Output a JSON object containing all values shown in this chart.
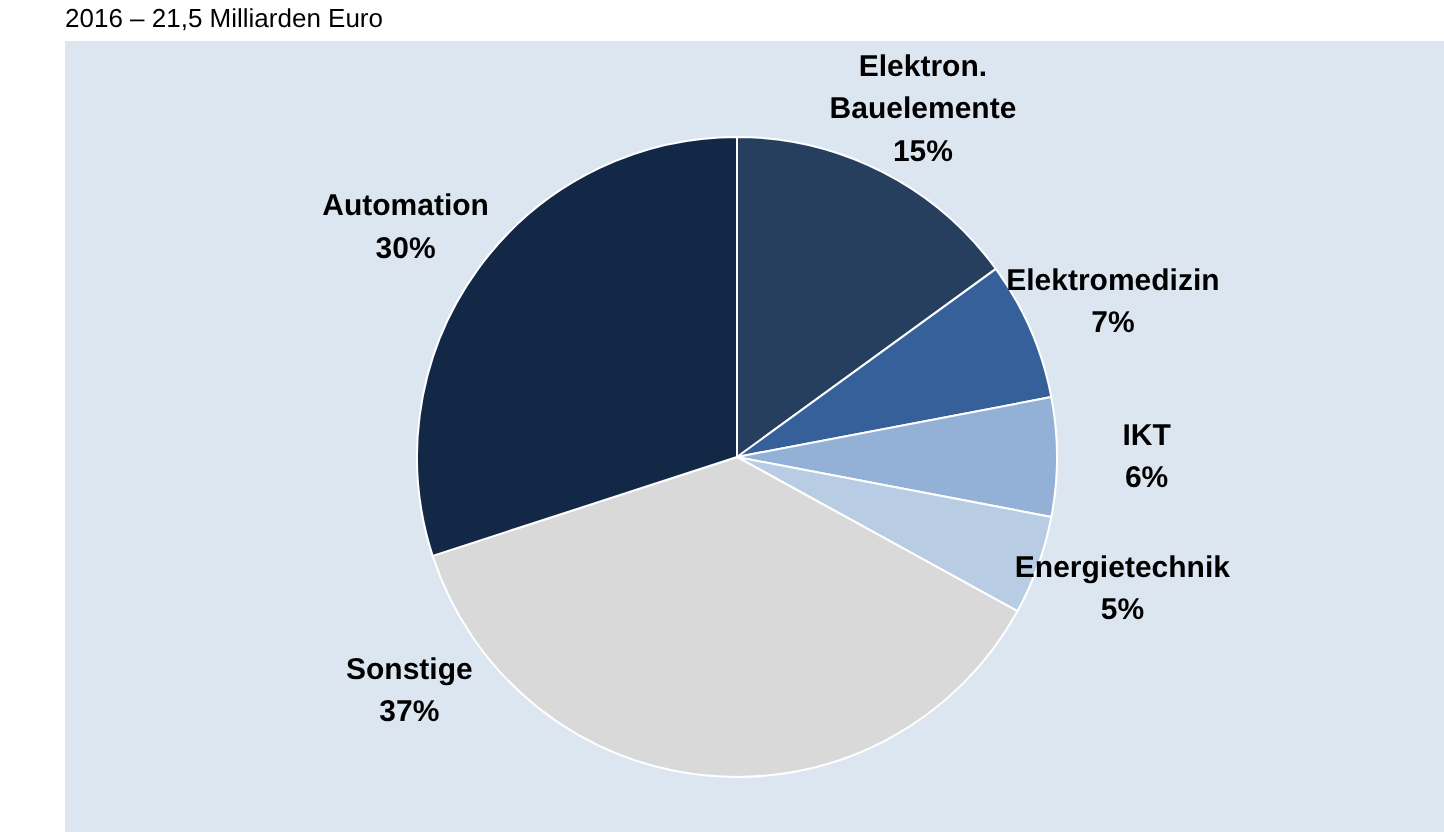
{
  "chart_data": {
    "type": "pie",
    "title": "2016 – 21,5 Milliarden Euro",
    "categories": [
      "Elektron.\nBauelemente",
      "Elektromedizin",
      "IKT",
      "Energietechnik",
      "Sonstige",
      "Automation"
    ],
    "values": [
      15,
      7,
      6,
      5,
      37,
      30
    ],
    "colors": [
      "#263f5f",
      "#35609a",
      "#93b0d6",
      "#b8cce4",
      "#d9d9d9",
      "#132847"
    ],
    "value_labels": [
      "15%",
      "7%",
      "6%",
      "5%",
      "37%",
      "30%"
    ]
  }
}
